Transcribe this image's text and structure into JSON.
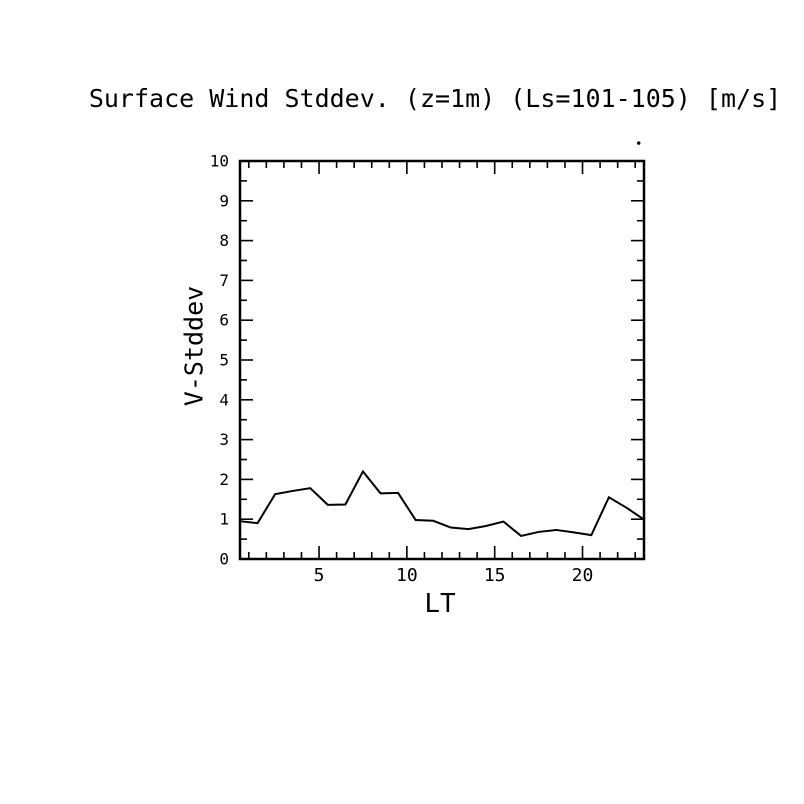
{
  "page": {
    "background_color": "#ffffff",
    "foreground_color": "#000000"
  },
  "chart_data": {
    "type": "line",
    "title": "Surface Wind Stddev. (z=1m) (Ls=101-105) [m/s]",
    "xlabel": "LT",
    "ylabel": "V-Stddev",
    "xlim": [
      0.5,
      23.5
    ],
    "ylim": [
      0,
      10
    ],
    "grid": false,
    "legend": null,
    "frame": "box-with-inward-ticks",
    "line_color": "#000000",
    "axis_color": "#000000",
    "x_major_ticks": [
      5,
      10,
      15,
      20
    ],
    "x_major_tick_labels": [
      "5",
      "10",
      "15",
      "20"
    ],
    "x_minor_tick_step": 1,
    "y_major_ticks": [
      0,
      1,
      2,
      3,
      4,
      5,
      6,
      7,
      8,
      9,
      10
    ],
    "y_major_tick_labels": [
      "0",
      "1",
      "2",
      "3",
      "4",
      "5",
      "6",
      "7",
      "8",
      "9",
      "10"
    ],
    "y_minor_tick_step": 0.5,
    "x": [
      0.5,
      1.5,
      2.5,
      3.5,
      4.5,
      5.5,
      6.5,
      7.5,
      8.5,
      9.5,
      10.5,
      11.5,
      12.5,
      13.5,
      14.5,
      15.5,
      16.5,
      17.5,
      18.5,
      19.5,
      20.5,
      21.5,
      22.5,
      23.5
    ],
    "y": [
      0.95,
      0.9,
      1.63,
      1.71,
      1.78,
      1.36,
      1.37,
      2.2,
      1.65,
      1.66,
      0.98,
      0.96,
      0.79,
      0.75,
      0.83,
      0.94,
      0.58,
      0.68,
      0.73,
      0.67,
      0.6,
      1.55,
      1.29,
      0.99
    ],
    "point_annotation": {
      "x": 23.2,
      "y": 10.45,
      "shape": "dot"
    }
  }
}
